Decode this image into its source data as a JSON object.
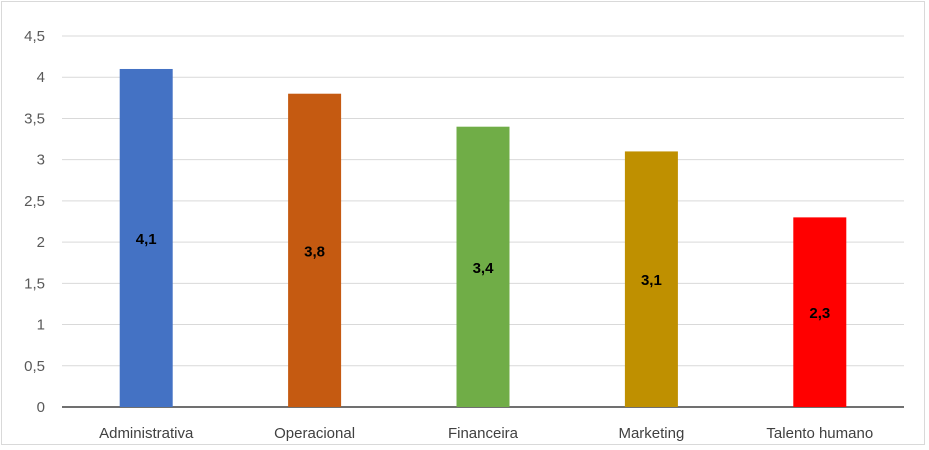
{
  "chart_data": {
    "type": "bar",
    "categories": [
      "Administrativa",
      "Operacional",
      "Financeira",
      "Marketing",
      "Talento humano"
    ],
    "values": [
      4.1,
      3.8,
      3.4,
      3.1,
      2.3
    ],
    "data_labels": [
      "4,1",
      "3,8",
      "3,4",
      "3,1",
      "2,3"
    ],
    "colors": [
      "#4472c4",
      "#c55a11",
      "#70ad47",
      "#bf9000",
      "#ff0000"
    ],
    "ylim": [
      0,
      4.5
    ],
    "y_ticks": [
      0,
      0.5,
      1,
      1.5,
      2,
      2.5,
      3,
      3.5,
      4,
      4.5
    ],
    "y_tick_labels": [
      "0",
      "0,5",
      "1",
      "1,5",
      "2",
      "2,5",
      "3",
      "3,5",
      "4",
      "4,5"
    ],
    "grid": true,
    "legend": "none",
    "title": "",
    "xlabel": "",
    "ylabel": ""
  }
}
